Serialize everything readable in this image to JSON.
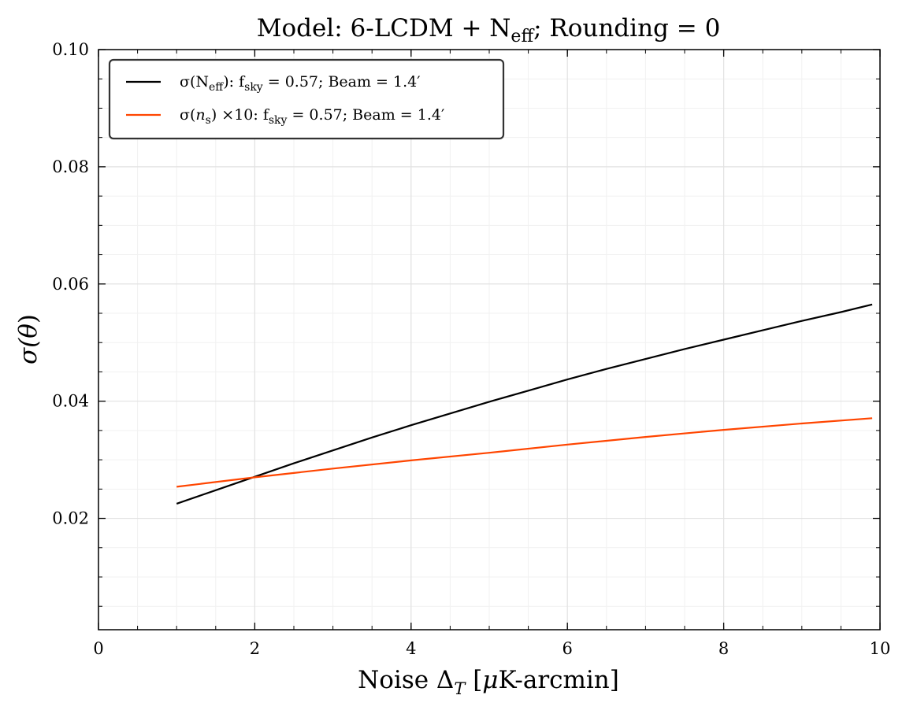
{
  "chart_data": {
    "type": "line",
    "title": {
      "prefix": "Model: 6-LCDM + N",
      "sub": "eff",
      "suffix": "; Rounding = 0"
    },
    "xlabel": "Noise ΔT [μK-arcmin]",
    "xlabel_parts": {
      "a": "Noise Δ",
      "sub": "T",
      "b": " [",
      "mu": "μ",
      "c": "K-arcmin]"
    },
    "ylabel": "σ(θ)",
    "ylabel_parts": {
      "a": "σ(",
      "theta": "θ",
      "b": ")"
    },
    "xlim": [
      0,
      10
    ],
    "ylim": [
      0.001,
      0.1
    ],
    "xticks": [
      0,
      2,
      4,
      6,
      8,
      10
    ],
    "yticks": [
      0.02,
      0.04,
      0.06,
      0.08,
      0.1
    ],
    "xtick_labels": [
      "0",
      "2",
      "4",
      "6",
      "8",
      "10"
    ],
    "ytick_labels": [
      "0.02",
      "0.04",
      "0.06",
      "0.08",
      "0.10"
    ],
    "grid": true,
    "legend_position": "top-left",
    "series": [
      {
        "name": "σ(Neff): fsky = 0.57; Beam = 1.4′",
        "legend_parts": [
          {
            "t": "σ(N"
          },
          {
            "t": "eff",
            "sub": true
          },
          {
            "t": "): f"
          },
          {
            "t": "sky",
            "sub": true
          },
          {
            "t": " = 0.57; Beam = 1.4′"
          }
        ],
        "color": "#000000",
        "x": [
          1.0,
          1.5,
          2.0,
          2.5,
          3.0,
          3.5,
          4.0,
          4.5,
          5.0,
          5.5,
          6.0,
          6.5,
          7.0,
          7.5,
          8.0,
          8.5,
          9.0,
          9.5,
          9.9
        ],
        "y": [
          0.0225,
          0.0248,
          0.0271,
          0.0294,
          0.0316,
          0.0338,
          0.0359,
          0.0379,
          0.0399,
          0.0418,
          0.0437,
          0.0455,
          0.0472,
          0.0489,
          0.0505,
          0.0521,
          0.0537,
          0.0552,
          0.0565
        ]
      },
      {
        "name": "σ(ns) ×10: fsky = 0.57; Beam = 1.4′",
        "legend_parts": [
          {
            "t": "σ("
          },
          {
            "t": "n",
            "italic": true
          },
          {
            "t": "s",
            "sub": true
          },
          {
            "t": ") ×10: f"
          },
          {
            "t": "sky",
            "sub": true
          },
          {
            "t": " = 0.57; Beam = 1.4′"
          }
        ],
        "color": "#ff4500",
        "x": [
          1.0,
          2.0,
          3.0,
          4.0,
          5.0,
          6.0,
          7.0,
          8.0,
          9.0,
          9.9
        ],
        "y": [
          0.0254,
          0.027,
          0.0285,
          0.0299,
          0.0312,
          0.0326,
          0.0339,
          0.0351,
          0.0362,
          0.0371
        ]
      }
    ]
  }
}
